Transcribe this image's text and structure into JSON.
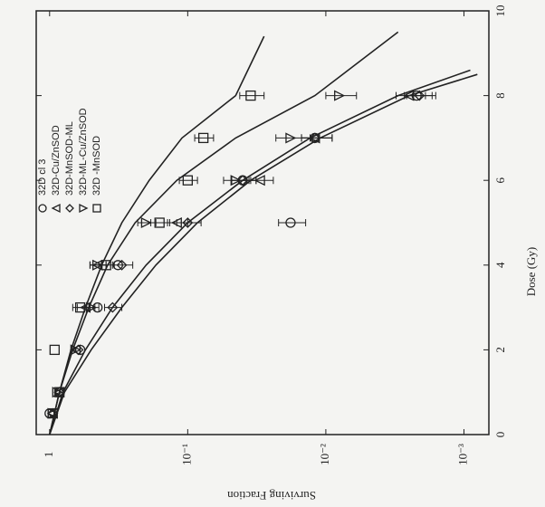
{
  "chart_data": {
    "type": "scatter",
    "x_label": "Dose (Gy)",
    "y_label": "Surviving Fraction",
    "xlim": [
      0,
      10
    ],
    "xticks": [
      0,
      2,
      4,
      6,
      8,
      10
    ],
    "ylim": [
      0.00066,
      1.25
    ],
    "log_y": true,
    "yticks": [
      1,
      {
        "value": 0.1,
        "label": "10⁻¹"
      },
      {
        "value": 0.01,
        "label": "10⁻²"
      },
      {
        "value": 0.001,
        "label": "10⁻³"
      }
    ],
    "x": [
      0.5,
      1,
      2,
      3,
      4,
      5,
      6,
      7,
      8
    ],
    "series": [
      {
        "name": "32D cl 3",
        "marker": "circle",
        "color": "#222",
        "values": [
          1,
          0.85,
          0.6,
          0.45,
          0.32,
          0.018,
          0.04,
          0.012,
          0.0022
        ],
        "errors": [
          null,
          null,
          null,
          null,
          null,
          0.004,
          0.008,
          0.003,
          0.0005
        ]
      },
      {
        "name": "32D-Cu/ZnSOD",
        "marker": "triangle",
        "color": "#222",
        "values": [
          0.95,
          0.85,
          0.65,
          0.55,
          0.45,
          0.12,
          0.03,
          0.012,
          0.0025
        ],
        "errors": [
          null,
          null,
          null,
          0.08,
          0.06,
          0.02,
          0.006,
          0.003,
          0.0006
        ]
      },
      {
        "name": "32D-MnSOD-ML",
        "marker": "diamond",
        "color": "#222",
        "values": [
          0.95,
          0.85,
          0.62,
          0.35,
          0.3,
          0.1,
          0.04,
          0.012,
          0.0021
        ],
        "errors": [
          null,
          null,
          null,
          0.05,
          0.05,
          0.02,
          0.008,
          0.003,
          0.0005
        ]
      },
      {
        "name": "32D-ML-Cu/ZnSOD",
        "marker": "triangle-down",
        "color": "#222",
        "values": [
          0.95,
          0.88,
          0.65,
          0.5,
          0.45,
          0.2,
          0.045,
          0.018,
          0.008
        ],
        "errors": [
          null,
          null,
          null,
          0.06,
          0.06,
          0.03,
          0.01,
          0.005,
          0.002
        ]
      },
      {
        "name": "32D -MnSOD",
        "marker": "square",
        "color": "#222",
        "values": [
          0.95,
          0.85,
          0.92,
          0.6,
          0.39,
          0.16,
          0.1,
          0.077,
          0.035
        ],
        "errors": [
          null,
          null,
          null,
          0.08,
          0.05,
          0.025,
          0.015,
          0.012,
          0.007
        ]
      }
    ],
    "fits": [
      {
        "x": [
          0,
          1,
          2,
          3,
          4,
          5,
          6,
          7,
          8,
          9.4
        ],
        "values": [
          1,
          0.85,
          0.7,
          0.55,
          0.42,
          0.3,
          0.19,
          0.11,
          0.045,
          0.028
        ]
      },
      {
        "x": [
          0,
          1,
          2,
          3,
          4,
          5,
          6,
          7,
          8,
          9.5
        ],
        "values": [
          1,
          0.85,
          0.68,
          0.52,
          0.38,
          0.24,
          0.12,
          0.045,
          0.012,
          0.003
        ]
      },
      {
        "x": [
          0,
          1,
          2,
          3,
          4,
          5,
          6,
          7,
          8,
          8.6
        ],
        "values": [
          1,
          0.8,
          0.55,
          0.35,
          0.2,
          0.1,
          0.04,
          0.013,
          0.003,
          0.0009
        ]
      },
      {
        "x": [
          0,
          1,
          2,
          3,
          4,
          5,
          6,
          7,
          8,
          8.5
        ],
        "values": [
          1,
          0.78,
          0.5,
          0.3,
          0.17,
          0.085,
          0.035,
          0.011,
          0.0025,
          0.0008
        ]
      }
    ]
  }
}
